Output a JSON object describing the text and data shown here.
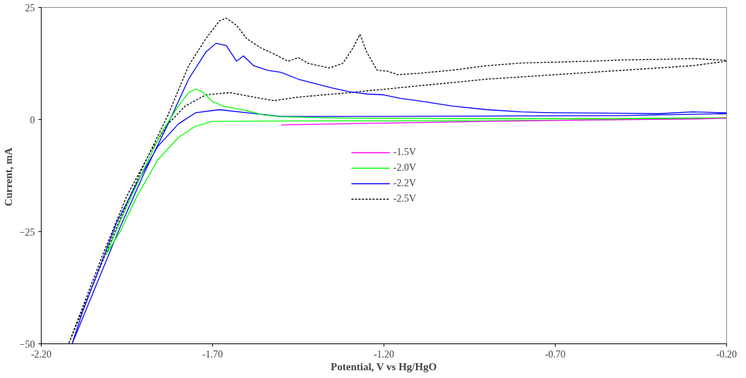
{
  "chart_data": {
    "type": "line",
    "xlabel": "Potential, V vs Hg/HgO",
    "ylabel": "Current,  mA",
    "xlim": [
      -2.2,
      -0.2
    ],
    "ylim": [
      -50,
      25
    ],
    "xticks": [
      {
        "value": -2.2,
        "label": "-2.20"
      },
      {
        "value": -1.7,
        "label": "-1.70"
      },
      {
        "value": -1.2,
        "label": "-1.20"
      },
      {
        "value": -0.7,
        "label": "-0.70"
      },
      {
        "value": -0.2,
        "label": "-0.20"
      }
    ],
    "yticks": [
      -50,
      -25,
      0,
      25
    ],
    "grid": false,
    "legend": "center",
    "marker": "none",
    "series": [
      {
        "name": "-1.5V",
        "color": "#ff00ff",
        "line_style": "solid",
        "x": [
          -1.5,
          -1.2,
          -0.9,
          -0.6,
          -0.3,
          -0.2
        ],
        "values": [
          -1.2,
          -0.8,
          -0.4,
          -0.1,
          0.1,
          0.3
        ]
      },
      {
        "name": "-2.0V",
        "color": "#00ff00",
        "line_style": "solid",
        "x": [
          -0.2,
          -0.6,
          -1.0,
          -1.4,
          -1.7,
          -1.75,
          -1.8,
          -1.86,
          -1.92,
          -1.97,
          -2.01,
          -1.96,
          -1.9,
          -1.85,
          -1.8,
          -1.77,
          -1.75,
          -1.73,
          -1.7,
          -1.67,
          -1.6,
          -1.55,
          -1.5,
          -1.3,
          -1.0,
          -0.6,
          -0.2
        ],
        "values": [
          0.3,
          -0.1,
          -0.3,
          -0.3,
          -0.4,
          -1.5,
          -4,
          -9,
          -17,
          -25,
          -30,
          -21,
          -11,
          -3,
          3,
          6,
          6.8,
          6.2,
          4,
          3,
          2,
          1,
          0.6,
          0.3,
          0.2,
          0.2,
          0.4
        ]
      },
      {
        "name": "-2.2V",
        "color": "#0000ff",
        "line_style": "solid",
        "x": [
          -0.2,
          -0.5,
          -0.8,
          -1.2,
          -1.5,
          -1.6,
          -1.68,
          -1.75,
          -1.8,
          -1.86,
          -1.92,
          -1.98,
          -2.04,
          -2.08,
          -2.11,
          -2.04,
          -1.97,
          -1.9,
          -1.83,
          -1.77,
          -1.72,
          -1.69,
          -1.66,
          -1.63,
          -1.61,
          -1.58,
          -1.54,
          -1.5,
          -1.45,
          -1.4,
          -1.35,
          -1.3,
          -1.25,
          -1.2,
          -1.15,
          -1.1,
          -1.0,
          -0.9,
          -0.8,
          -0.7,
          -0.5,
          -0.4,
          -0.3,
          -0.2
        ],
        "values": [
          1.3,
          0.9,
          0.8,
          0.7,
          0.7,
          1.5,
          2.2,
          1.5,
          -1,
          -6,
          -14,
          -23,
          -35,
          -43,
          -50,
          -37,
          -24,
          -12,
          -1,
          9,
          15,
          17,
          16.5,
          13,
          14.2,
          12,
          11,
          10.5,
          9,
          8,
          7,
          6.2,
          5.7,
          5.5,
          4.7,
          4.2,
          3,
          2.2,
          1.7,
          1.5,
          1.4,
          1.3,
          1.7,
          1.5
        ]
      },
      {
        "name": "-2.5V",
        "color": "#000000",
        "line_style": "dashed",
        "x": [
          -0.2,
          -0.3,
          -0.5,
          -0.7,
          -0.9,
          -1.1,
          -1.3,
          -1.45,
          -1.52,
          -1.58,
          -1.65,
          -1.72,
          -1.78,
          -1.83,
          -1.88,
          -1.95,
          -2.02,
          -2.08,
          -2.12,
          -2.05,
          -1.98,
          -1.9,
          -1.83,
          -1.77,
          -1.72,
          -1.68,
          -1.66,
          -1.63,
          -1.6,
          -1.56,
          -1.52,
          -1.48,
          -1.45,
          -1.42,
          -1.36,
          -1.32,
          -1.29,
          -1.27,
          -1.25,
          -1.22,
          -1.19,
          -1.16,
          -1.1,
          -1.0,
          -0.9,
          -0.8,
          -0.7,
          -0.6,
          -0.5,
          -0.4,
          -0.3,
          -0.2
        ],
        "values": [
          13,
          12,
          11,
          10,
          9,
          7.5,
          6,
          5,
          4.2,
          5,
          6,
          5.5,
          3,
          -1,
          -7,
          -17,
          -30,
          -42,
          -50,
          -37,
          -24,
          -10,
          1,
          12,
          18,
          22,
          22.6,
          21,
          18,
          16,
          14.6,
          13,
          13.8,
          12.5,
          11.5,
          12.5,
          16,
          19,
          15,
          11,
          10.8,
          10,
          10.3,
          11,
          12,
          12.6,
          12.8,
          13,
          13.3,
          13.4,
          13.6,
          13.2
        ]
      }
    ]
  }
}
